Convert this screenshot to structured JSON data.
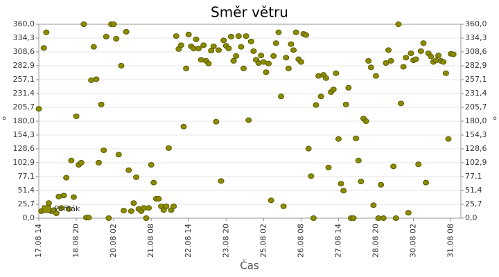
{
  "chart_data": {
    "type": "scatter",
    "title": "Směr větru",
    "x_label": "Čas",
    "y_label": "°",
    "x": [
      "17.08 14",
      "17.08 16",
      "17.08 18",
      "17.08 20",
      "17.08 22",
      "18.08 00",
      "18.08 02",
      "18.08 04",
      "18.08 06",
      "18.08 08",
      "18.08 10",
      "18.08 12",
      "18.08 14",
      "18.08 16",
      "18.08 18",
      "18.08 20",
      "18.08 22",
      "19.08 00",
      "19.08 02",
      "19.08 04",
      "19.08 06",
      "19.08 08",
      "19.08 10",
      "19.08 12",
      "19.08 14",
      "19.08 16",
      "19.08 18",
      "19.08 20",
      "19.08 22",
      "20.08 00",
      "20.08 02",
      "20.08 04",
      "20.08 06",
      "20.08 08",
      "20.08 10",
      "20.08 12",
      "20.08 14",
      "20.08 16",
      "20.08 18",
      "20.08 20",
      "20.08 22",
      "21.08 00",
      "21.08 02",
      "21.08 04",
      "21.08 06",
      "21.08 08",
      "21.08 10",
      "21.08 12",
      "21.08 14",
      "21.08 16",
      "21.08 18",
      "21.08 20",
      "21.08 22",
      "22.08 00",
      "22.08 02",
      "22.08 04",
      "22.08 06",
      "22.08 08",
      "22.08 10",
      "22.08 12",
      "22.08 14",
      "22.08 16",
      "22.08 18",
      "22.08 20",
      "22.08 22",
      "23.08 00",
      "23.08 02",
      "23.08 04",
      "23.08 06",
      "23.08 08",
      "23.08 10",
      "23.08 12",
      "23.08 14",
      "23.08 16",
      "23.08 18",
      "23.08 20",
      "23.08 22",
      "24.08 00",
      "24.08 02",
      "24.08 04",
      "24.08 06",
      "24.08 08",
      "24.08 10",
      "24.08 12",
      "24.08 14",
      "24.08 16",
      "24.08 18",
      "24.08 20",
      "24.08 22",
      "25.08 00",
      "25.08 02",
      "25.08 04",
      "25.08 06",
      "25.08 08",
      "25.08 10",
      "25.08 12",
      "25.08 14",
      "25.08 16",
      "25.08 18",
      "25.08 20",
      "25.08 22",
      "26.08 00",
      "26.08 02",
      "26.08 04",
      "26.08 06",
      "26.08 08",
      "26.08 10",
      "26.08 12",
      "26.08 14",
      "26.08 16",
      "26.08 18",
      "26.08 20",
      "26.08 22",
      "27.08 00",
      "27.08 02",
      "27.08 04",
      "27.08 06",
      "27.08 08",
      "27.08 10",
      "27.08 12",
      "27.08 14",
      "27.08 16",
      "27.08 18",
      "27.08 20",
      "27.08 22",
      "28.08 00",
      "28.08 02",
      "28.08 04",
      "28.08 06",
      "28.08 08",
      "28.08 10",
      "28.08 12",
      "28.08 14",
      "28.08 16",
      "28.08 18",
      "28.08 20",
      "28.08 22",
      "29.08 00",
      "29.08 02",
      "29.08 04",
      "29.08 06",
      "29.08 08",
      "29.08 10",
      "29.08 12",
      "29.08 14",
      "29.08 16",
      "29.08 18",
      "29.08 20",
      "29.08 22",
      "30.08 00",
      "30.08 02",
      "30.08 04",
      "30.08 06",
      "30.08 08",
      "30.08 10",
      "30.08 12",
      "30.08 14",
      "30.08 16",
      "30.08 18",
      "30.08 20",
      "30.08 22",
      "31.08 00",
      "31.08 02",
      "31.08 04",
      "31.08 06",
      "31.08 08",
      "31.08 10"
    ],
    "series": [
      {
        "name": "Pořňák",
        "color": "#8c8c00",
        "values": [
          203,
          13,
          316,
          345,
          28,
          13,
          15,
          9,
          40,
          19,
          42,
          75,
          17,
          107,
          39,
          189,
          99,
          103,
          360,
          1,
          1,
          256,
          318,
          258,
          103,
          211,
          126,
          337,
          0,
          360,
          360,
          333,
          118,
          283,
          14,
          346,
          89,
          13,
          28,
          76,
          17,
          13,
          19,
          0,
          19,
          99,
          66,
          36,
          36,
          22,
          15,
          22,
          130,
          15,
          22,
          338,
          314,
          321,
          170,
          278,
          341,
          319,
          315,
          332,
          315,
          294,
          321,
          292,
          287,
          311,
          319,
          179,
          312,
          69,
          330,
          320,
          315,
          337,
          292,
          301,
          338,
          318,
          278,
          338,
          182,
          328,
          310,
          294,
          288,
          302,
          290,
          271,
          287,
          33,
          301,
          325,
          345,
          226,
          22,
          298,
          278,
          323,
          312,
          345,
          295,
          290,
          342,
          340,
          129,
          78,
          0,
          210,
          264,
          226,
          266,
          260,
          94,
          234,
          239,
          269,
          147,
          64,
          51,
          211,
          242,
          0,
          0,
          148,
          107,
          68,
          185,
          180,
          292,
          280,
          24,
          264,
          0,
          62,
          0,
          288,
          312,
          292,
          96,
          0,
          360,
          213,
          281,
          298,
          10,
          306,
          293,
          295,
          100,
          310,
          325,
          66,
          306,
          300,
          290,
          293,
          302,
          292,
          290,
          269,
          147,
          305,
          304
        ]
      }
    ],
    "xlim": [
      "17.08 14",
      "31.08 16"
    ],
    "xticks": [
      "17.08 14",
      "18.08 20",
      "20.08 02",
      "21.08 08",
      "22.08 14",
      "23.08 20",
      "25.08 02",
      "26.08 08",
      "27.08 14",
      "28.08 20",
      "30.08 02",
      "31.08 08"
    ],
    "ylim": [
      0,
      360
    ],
    "yticks": [
      {
        "value": 0,
        "label": "0,0"
      },
      {
        "value": 25.7,
        "label": "25,7"
      },
      {
        "value": 51.4,
        "label": "51,4"
      },
      {
        "value": 77.1,
        "label": "77,1"
      },
      {
        "value": 102.9,
        "label": "102,9"
      },
      {
        "value": 128.6,
        "label": "128,6"
      },
      {
        "value": 154.3,
        "label": "154,3"
      },
      {
        "value": 180,
        "label": "180,0"
      },
      {
        "value": 205.7,
        "label": "205,7"
      },
      {
        "value": 231.4,
        "label": "231,4"
      },
      {
        "value": 257.1,
        "label": "257,1"
      },
      {
        "value": 282.9,
        "label": "282,9"
      },
      {
        "value": 308.6,
        "label": "308,6"
      },
      {
        "value": 334.3,
        "label": "334,3"
      },
      {
        "value": 360,
        "label": "360,0"
      }
    ],
    "grid": true,
    "legend": "bottom-left"
  }
}
